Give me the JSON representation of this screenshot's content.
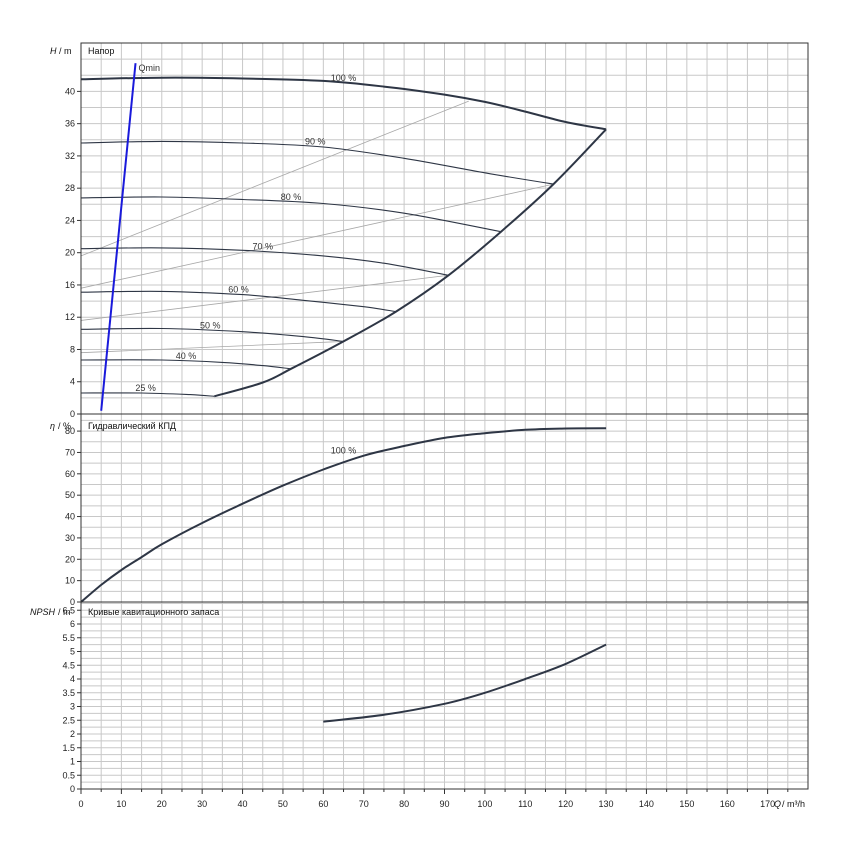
{
  "chart_data": [
    {
      "type": "line",
      "title": "Напор",
      "ylabel_symbol": "H",
      "ylabel_unit": "/ m",
      "xlim": [
        0,
        180
      ],
      "ylim": [
        0,
        46
      ],
      "yticks": [
        0,
        4,
        8,
        12,
        16,
        20,
        24,
        28,
        32,
        36,
        40
      ],
      "series": [
        {
          "name": "100 %",
          "points": [
            [
              0,
              41.5
            ],
            [
              20,
              41.7
            ],
            [
              40,
              41.6
            ],
            [
              60,
              41.3
            ],
            [
              75,
              40.6
            ],
            [
              90,
              39.6
            ],
            [
              100,
              38.7
            ],
            [
              110,
              37.5
            ],
            [
              120,
              36.2
            ],
            [
              130,
              35.3
            ]
          ]
        },
        {
          "name": "90 %",
          "points": [
            [
              0,
              33.6
            ],
            [
              20,
              33.8
            ],
            [
              40,
              33.6
            ],
            [
              60,
              33.1
            ],
            [
              80,
              31.7
            ],
            [
              100,
              29.9
            ],
            [
              117,
              28.5
            ]
          ]
        },
        {
          "name": "80 %",
          "points": [
            [
              0,
              26.8
            ],
            [
              20,
              26.9
            ],
            [
              40,
              26.6
            ],
            [
              60,
              26.1
            ],
            [
              80,
              24.9
            ],
            [
              104,
              22.6
            ]
          ]
        },
        {
          "name": "70 %",
          "points": [
            [
              0,
              20.5
            ],
            [
              20,
              20.6
            ],
            [
              40,
              20.3
            ],
            [
              60,
              19.6
            ],
            [
              75,
              18.7
            ],
            [
              91,
              17.2
            ]
          ]
        },
        {
          "name": "60 %",
          "points": [
            [
              0,
              15.1
            ],
            [
              20,
              15.2
            ],
            [
              40,
              14.8
            ],
            [
              55,
              14.1
            ],
            [
              70,
              13.3
            ],
            [
              78,
              12.7
            ]
          ]
        },
        {
          "name": "50 %",
          "points": [
            [
              0,
              10.5
            ],
            [
              20,
              10.6
            ],
            [
              40,
              10.2
            ],
            [
              55,
              9.6
            ],
            [
              65,
              9.0
            ]
          ]
        },
        {
          "name": "40 %",
          "points": [
            [
              0,
              6.7
            ],
            [
              20,
              6.7
            ],
            [
              35,
              6.4
            ],
            [
              45,
              6.0
            ],
            [
              52,
              5.6
            ]
          ]
        },
        {
          "name": "25 %",
          "points": [
            [
              0,
              2.6
            ],
            [
              15,
              2.6
            ],
            [
              27,
              2.4
            ],
            [
              33,
              2.2
            ]
          ]
        }
      ],
      "envelope": [
        [
          33,
          2.2
        ],
        [
          45,
          3.9
        ],
        [
          52,
          5.6
        ],
        [
          65,
          9.0
        ],
        [
          78,
          12.7
        ],
        [
          91,
          17.2
        ],
        [
          104,
          22.6
        ],
        [
          117,
          28.5
        ],
        [
          130,
          35.3
        ]
      ],
      "efficiency_lines": [
        [
          [
            0,
            19.6
          ],
          [
            96,
            38.8
          ]
        ],
        [
          [
            0,
            15.6
          ],
          [
            117,
            28.5
          ]
        ],
        [
          [
            0,
            11.6
          ],
          [
            91,
            17.2
          ]
        ],
        [
          [
            0,
            7.6
          ],
          [
            65,
            9.0
          ]
        ]
      ],
      "qmin": {
        "label": "Qmin",
        "points": [
          [
            5,
            0.4
          ],
          [
            13.5,
            43.5
          ]
        ]
      }
    },
    {
      "type": "line",
      "title": "Гидравлический КПД",
      "ylabel_symbol": "η",
      "ylabel_unit": "/ %",
      "xlim": [
        0,
        180
      ],
      "ylim": [
        0,
        88
      ],
      "yticks": [
        0,
        10,
        20,
        30,
        40,
        50,
        60,
        70,
        80
      ],
      "series": [
        {
          "name": "100 %",
          "points": [
            [
              0,
              0
            ],
            [
              5,
              8
            ],
            [
              10,
              15
            ],
            [
              15,
              21
            ],
            [
              20,
              27
            ],
            [
              30,
              37
            ],
            [
              40,
              46
            ],
            [
              50,
              54.5
            ],
            [
              60,
              62
            ],
            [
              70,
              68.5
            ],
            [
              80,
              73
            ],
            [
              90,
              76.8
            ],
            [
              100,
              79
            ],
            [
              110,
              80.6
            ],
            [
              120,
              81.2
            ],
            [
              130,
              81.3
            ]
          ]
        }
      ]
    },
    {
      "type": "line",
      "title": "Кривые кавитационного запаса",
      "ylabel_symbol": "NPSH",
      "ylabel_unit": "/ m",
      "xlabel_symbol": "Q",
      "xlabel_unit": "/ m³/h",
      "xlim": [
        0,
        180
      ],
      "ylim": [
        0,
        6.8
      ],
      "xticks": [
        0,
        10,
        20,
        30,
        40,
        50,
        60,
        70,
        80,
        90,
        100,
        110,
        120,
        130,
        140,
        150,
        160,
        170
      ],
      "yticks": [
        "0",
        "0.5",
        "1",
        "1.5",
        "2",
        "2.5",
        "3",
        "3.5",
        "4",
        "4.5",
        "5",
        "5.5",
        "6",
        "6.5"
      ],
      "series": [
        {
          "name": "",
          "points": [
            [
              60,
              2.45
            ],
            [
              75,
              2.7
            ],
            [
              90,
              3.1
            ],
            [
              100,
              3.5
            ],
            [
              110,
              4.0
            ],
            [
              120,
              4.55
            ],
            [
              130,
              5.25
            ]
          ]
        }
      ]
    }
  ]
}
